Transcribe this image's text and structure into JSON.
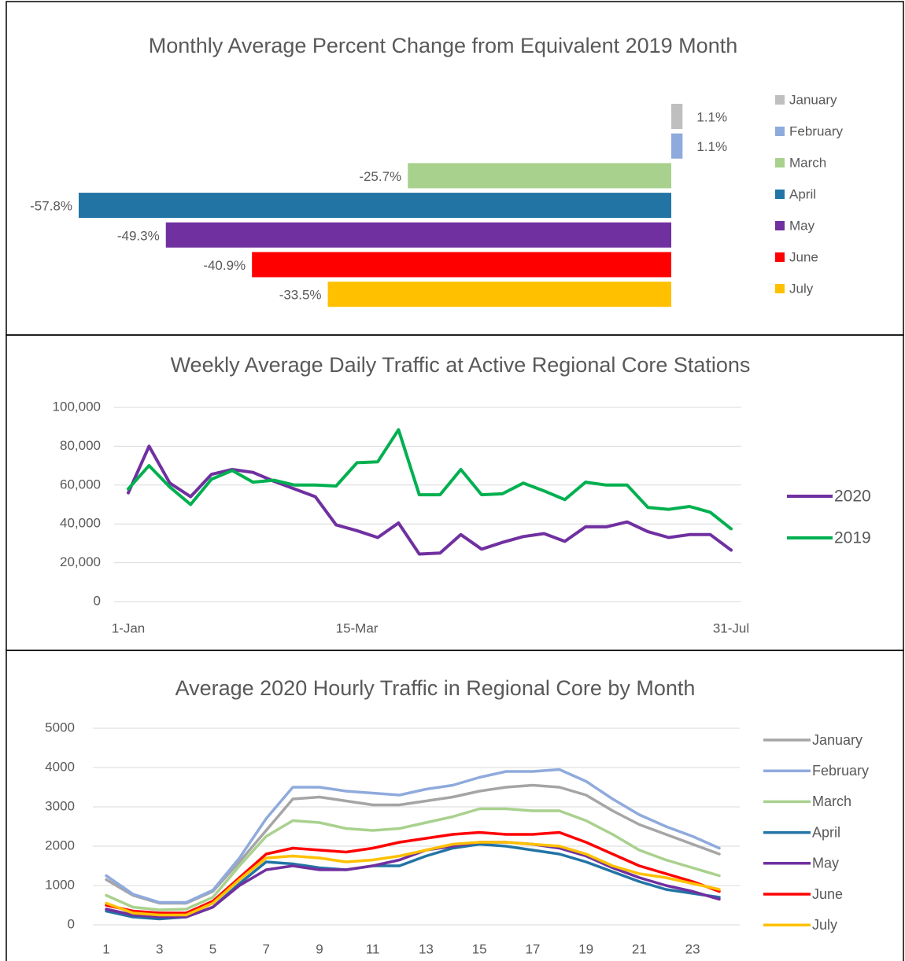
{
  "chart_data": [
    {
      "type": "bar",
      "orientation": "horizontal",
      "title": "Monthly Average Percent Change from Equivalent 2019 Month",
      "categories": [
        "January",
        "February",
        "March",
        "April",
        "May",
        "June",
        "July"
      ],
      "values": [
        1.1,
        1.1,
        -25.7,
        -57.8,
        -49.3,
        -40.9,
        -33.5
      ],
      "value_labels": [
        "1.1%",
        "1.1%",
        "-25.7%",
        "-57.8%",
        "-49.3%",
        "-40.9%",
        "-33.5%"
      ],
      "colors": [
        "#bfbfbf",
        "#8faadc",
        "#a9d18e",
        "#2274a5",
        "#7030a0",
        "#ff0000",
        "#ffc000"
      ],
      "legend": "right"
    },
    {
      "type": "line",
      "title": "Weekly Average Daily Traffic at Active Regional Core Stations",
      "categories": [
        "1-Jan",
        null,
        null,
        null,
        null,
        null,
        null,
        null,
        null,
        null,
        null,
        "15-Mar",
        null,
        null,
        null,
        null,
        null,
        null,
        null,
        null,
        null,
        null,
        null,
        null,
        null,
        null,
        null,
        null,
        null,
        "31-Jul"
      ],
      "series": [
        {
          "name": "2020",
          "color": "#7030a0",
          "values": [
            56000,
            80000,
            61000,
            54000,
            65500,
            68000,
            66500,
            62000,
            58000,
            54000,
            39500,
            36500,
            33000,
            40500,
            24500,
            25000,
            34500,
            27000,
            30500,
            33500,
            35000,
            31000,
            38500,
            38500,
            41000,
            36000,
            33000,
            34500,
            34500,
            26500
          ]
        },
        {
          "name": "2019",
          "color": "#00b050",
          "values": [
            58000,
            70000,
            59000,
            50000,
            63000,
            67500,
            61500,
            62500,
            60000,
            60000,
            59500,
            71500,
            72000,
            88500,
            55000,
            55000,
            68000,
            55000,
            55500,
            61000,
            57000,
            52500,
            61500,
            60000,
            60000,
            48500,
            47500,
            49000,
            46000,
            37500
          ]
        }
      ],
      "ylim": [
        0,
        100000
      ],
      "yticks": [
        0,
        {
          "value": 20000,
          "label": "20,000"
        },
        {
          "value": 40000,
          "label": "40,000"
        },
        {
          "value": 60000,
          "label": "60,000"
        },
        {
          "value": 80000,
          "label": "80,000"
        },
        {
          "value": 100000,
          "label": "100,000"
        }
      ],
      "grid": true,
      "legend": "right"
    },
    {
      "type": "line",
      "title": "Average 2020 Hourly Traffic in Regional Core by Month",
      "x": [
        1,
        2,
        3,
        4,
        5,
        6,
        7,
        8,
        9,
        10,
        11,
        12,
        13,
        14,
        15,
        16,
        17,
        18,
        19,
        20,
        21,
        22,
        23,
        24
      ],
      "xlim": [
        1,
        24
      ],
      "xticks": [
        1,
        3,
        5,
        7,
        9,
        11,
        13,
        15,
        17,
        19,
        21,
        23
      ],
      "series": [
        {
          "name": "January",
          "color": "#a5a5a5",
          "values": [
            1150,
            750,
            550,
            550,
            850,
            1600,
            2400,
            3200,
            3250,
            3150,
            3050,
            3050,
            3150,
            3250,
            3400,
            3500,
            3550,
            3500,
            3300,
            2900,
            2550,
            2300,
            2050,
            1800
          ]
        },
        {
          "name": "February",
          "color": "#8faadc",
          "values": [
            1250,
            780,
            570,
            570,
            880,
            1700,
            2700,
            3500,
            3500,
            3400,
            3350,
            3300,
            3450,
            3550,
            3750,
            3900,
            3900,
            3950,
            3650,
            3200,
            2800,
            2500,
            2250,
            1950
          ]
        },
        {
          "name": "March",
          "color": "#a9d18e",
          "values": [
            750,
            450,
            380,
            400,
            700,
            1500,
            2250,
            2650,
            2600,
            2450,
            2400,
            2450,
            2600,
            2750,
            2950,
            2950,
            2900,
            2900,
            2650,
            2300,
            1900,
            1650,
            1450,
            1250
          ]
        },
        {
          "name": "April",
          "color": "#2274a5",
          "values": [
            350,
            200,
            150,
            200,
            450,
            1050,
            1600,
            1550,
            1450,
            1400,
            1500,
            1500,
            1750,
            1950,
            2050,
            2000,
            1900,
            1800,
            1600,
            1350,
            1100,
            900,
            800,
            700
          ]
        },
        {
          "name": "May",
          "color": "#7030a0",
          "values": [
            400,
            250,
            200,
            200,
            450,
            1000,
            1400,
            1500,
            1400,
            1400,
            1500,
            1650,
            1900,
            2000,
            2100,
            2100,
            2050,
            1950,
            1750,
            1450,
            1200,
            1000,
            850,
            650
          ]
        },
        {
          "name": "June",
          "color": "#ff0000",
          "values": [
            500,
            350,
            300,
            300,
            600,
            1200,
            1800,
            1950,
            1900,
            1850,
            1950,
            2100,
            2200,
            2300,
            2350,
            2300,
            2300,
            2350,
            2100,
            1800,
            1500,
            1300,
            1100,
            850
          ]
        },
        {
          "name": "July",
          "color": "#ffc000",
          "values": [
            550,
            300,
            250,
            250,
            550,
            1150,
            1700,
            1750,
            1700,
            1600,
            1650,
            1750,
            1900,
            2050,
            2100,
            2100,
            2050,
            2000,
            1800,
            1500,
            1300,
            1200,
            1050,
            900
          ]
        }
      ],
      "ylim": [
        0,
        5000
      ],
      "yticks": [
        0,
        1000,
        2000,
        3000,
        4000,
        5000
      ],
      "grid": true,
      "legend": "right"
    }
  ]
}
